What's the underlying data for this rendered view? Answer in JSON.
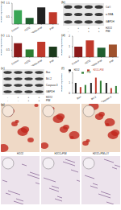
{
  "panel_labels": [
    "(a)",
    "(b)",
    "(c)",
    "(d)",
    "(e)",
    "(f)",
    "(g)"
  ],
  "chart_data": [
    {
      "type": "bar",
      "y_label": "Relative expression",
      "categories": [
        "Control",
        "H2O2",
        "H2O2+PIM",
        "PIM"
      ],
      "values": [
        1,
        0.45,
        1.2,
        0.85
      ],
      "colors": [
        "#3aa655",
        "#1f5e2e",
        "#222222",
        "#c0392b"
      ],
      "ylim": [
        0,
        1.5
      ],
      "yticks": [
        0,
        0.5,
        1,
        1.5
      ]
    },
    {
      "type": "bar",
      "y_label": "Relative expression",
      "categories": [
        "Control",
        "H2O2",
        "H2O2+PIM",
        "PIM"
      ],
      "values": [
        1,
        0.55,
        1.1,
        0.75
      ],
      "colors": [
        "#8b1a1a",
        "#2e7d32",
        "#c0392b",
        "#1b3a1b"
      ],
      "ylim": [
        0,
        1.5
      ],
      "yticks": [
        0,
        0.5,
        1,
        1.5
      ]
    },
    {
      "type": "bar",
      "y_label": "Relative expression",
      "categories": [
        "Control",
        "H2O2",
        "H2O2+PIM",
        "PIM"
      ],
      "values": [
        1,
        1.6,
        0.9,
        1.2
      ],
      "colors": [
        "#8b1a1a",
        "#c0392b",
        "#1f5e2e",
        "#a0522d"
      ],
      "ylim": [
        0,
        2
      ],
      "yticks": [
        0,
        1,
        2
      ]
    },
    {
      "type": "bar",
      "y_label": "Relative expression",
      "categories": [
        "Bax",
        "Bcl-2",
        "Caspase-3"
      ],
      "series": [
        {
          "name": "H2O2",
          "color": "#222222",
          "values": [
            1,
            1,
            1
          ]
        },
        {
          "name": "H2O2+PIM",
          "color": "#c0392b",
          "values": [
            0.6,
            1.5,
            0.5
          ]
        },
        {
          "name": "PIM",
          "color": "#2e7d32",
          "values": [
            0.8,
            1.2,
            0.7
          ]
        }
      ],
      "ylim": [
        0,
        2
      ],
      "yticks": [
        0,
        1,
        2
      ],
      "legend": "top"
    }
  ],
  "blots": [
    {
      "bands": [
        "Col I",
        "α-SMA",
        "GAPDH"
      ]
    },
    {
      "bands": [
        "Bax",
        "Bcl-2",
        "Caspase-3",
        "GAPDH"
      ]
    }
  ],
  "conditions": [
    {
      "label": "H2O2",
      "marks": [
        "-",
        "+",
        "+",
        "+"
      ]
    },
    {
      "label": "PIM",
      "marks": [
        "-",
        "-",
        "+",
        "+"
      ]
    }
  ],
  "images": {
    "labels": [
      "H2O2",
      "H2O2+PIM",
      "H2O2+PIM+LY"
    ]
  }
}
